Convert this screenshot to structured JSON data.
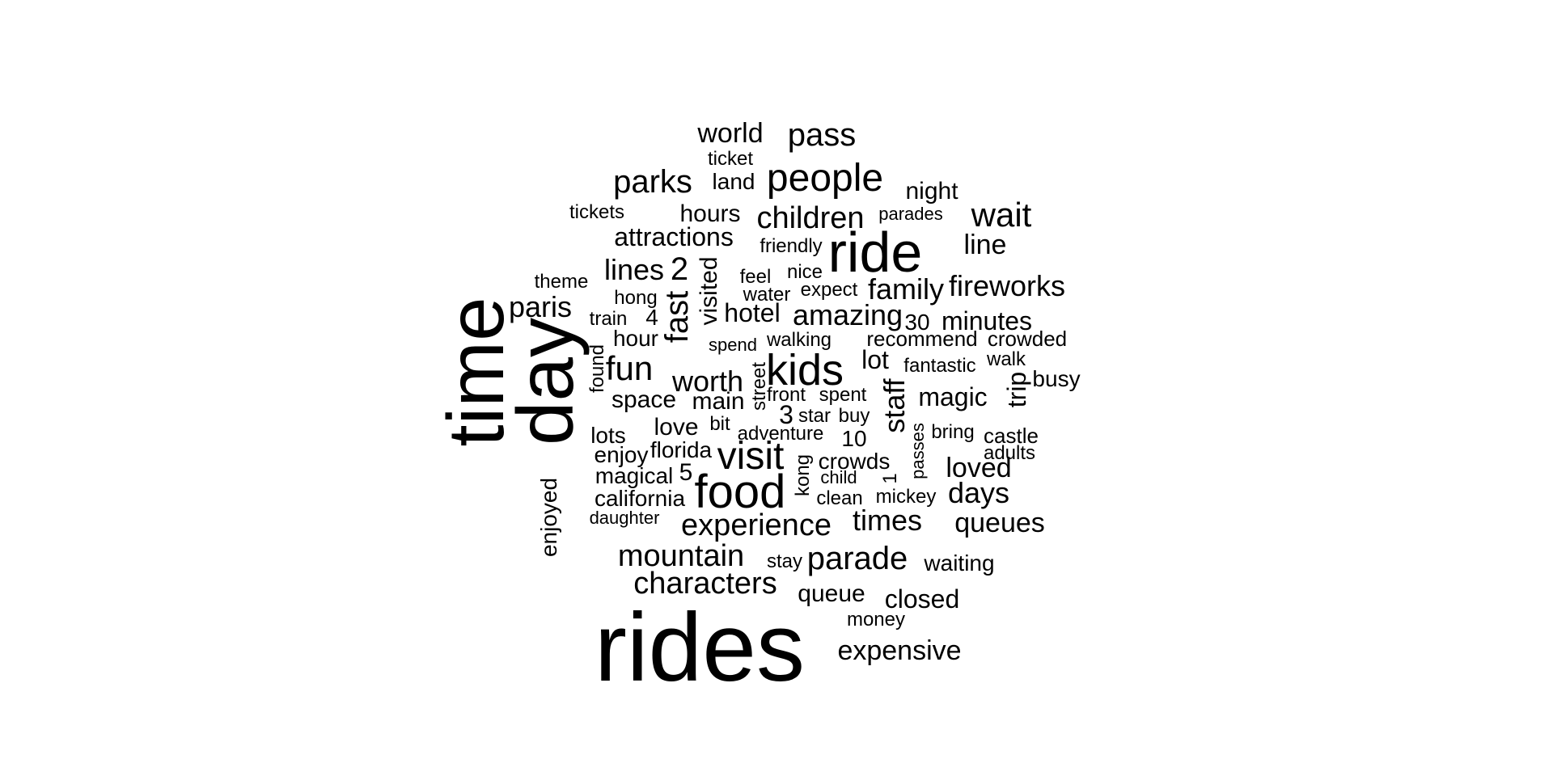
{
  "word_cloud": {
    "words": [
      {
        "text": "rides"
      },
      {
        "text": "time"
      },
      {
        "text": "day"
      },
      {
        "text": "ride"
      },
      {
        "text": "food"
      },
      {
        "text": "kids"
      },
      {
        "text": "people"
      },
      {
        "text": "visit"
      },
      {
        "text": "experience"
      },
      {
        "text": "characters"
      },
      {
        "text": "mountain"
      },
      {
        "text": "parade"
      },
      {
        "text": "pass"
      },
      {
        "text": "parks"
      },
      {
        "text": "wait"
      },
      {
        "text": "children"
      },
      {
        "text": "fun"
      },
      {
        "text": "fast"
      },
      {
        "text": "staff"
      },
      {
        "text": "world"
      },
      {
        "text": "lines"
      },
      {
        "text": "2"
      },
      {
        "text": "fireworks"
      },
      {
        "text": "family"
      },
      {
        "text": "amazing"
      },
      {
        "text": "worth"
      },
      {
        "text": "times"
      },
      {
        "text": "queues"
      },
      {
        "text": "days"
      },
      {
        "text": "loved"
      },
      {
        "text": "expensive"
      },
      {
        "text": "closed"
      },
      {
        "text": "paris"
      },
      {
        "text": "attractions"
      },
      {
        "text": "hours"
      },
      {
        "text": "hotel"
      },
      {
        "text": "minutes"
      },
      {
        "text": "magic"
      },
      {
        "text": "line"
      },
      {
        "text": "visited"
      },
      {
        "text": "space"
      },
      {
        "text": "main"
      },
      {
        "text": "love"
      },
      {
        "text": "queue"
      },
      {
        "text": "california"
      },
      {
        "text": "waiting"
      },
      {
        "text": "night"
      },
      {
        "text": "lot"
      },
      {
        "text": "trip"
      },
      {
        "text": "busy"
      },
      {
        "text": "enjoyed"
      },
      {
        "text": "3"
      },
      {
        "text": "crowds"
      },
      {
        "text": "enjoy"
      },
      {
        "text": "magical"
      },
      {
        "text": "florida"
      },
      {
        "text": "lots"
      },
      {
        "text": "land"
      },
      {
        "text": "hour"
      },
      {
        "text": "recommend"
      },
      {
        "text": "crowded"
      },
      {
        "text": "castle"
      },
      {
        "text": "5"
      },
      {
        "text": "10"
      },
      {
        "text": "30"
      },
      {
        "text": "4"
      },
      {
        "text": "ticket"
      },
      {
        "text": "tickets"
      },
      {
        "text": "theme"
      },
      {
        "text": "hong"
      },
      {
        "text": "train"
      },
      {
        "text": "friendly"
      },
      {
        "text": "feel"
      },
      {
        "text": "nice"
      },
      {
        "text": "water"
      },
      {
        "text": "expect"
      },
      {
        "text": "walking"
      },
      {
        "text": "spend"
      },
      {
        "text": "found"
      },
      {
        "text": "fantastic"
      },
      {
        "text": "walk"
      },
      {
        "text": "street"
      },
      {
        "text": "front"
      },
      {
        "text": "spent"
      },
      {
        "text": "star"
      },
      {
        "text": "buy"
      },
      {
        "text": "bit"
      },
      {
        "text": "adventure"
      },
      {
        "text": "bring"
      },
      {
        "text": "passes"
      },
      {
        "text": "adults"
      },
      {
        "text": "kong"
      },
      {
        "text": "child"
      },
      {
        "text": "1"
      },
      {
        "text": "clean"
      },
      {
        "text": "mickey"
      },
      {
        "text": "daughter"
      },
      {
        "text": "stay"
      },
      {
        "text": "money"
      },
      {
        "text": "parades"
      }
    ]
  }
}
